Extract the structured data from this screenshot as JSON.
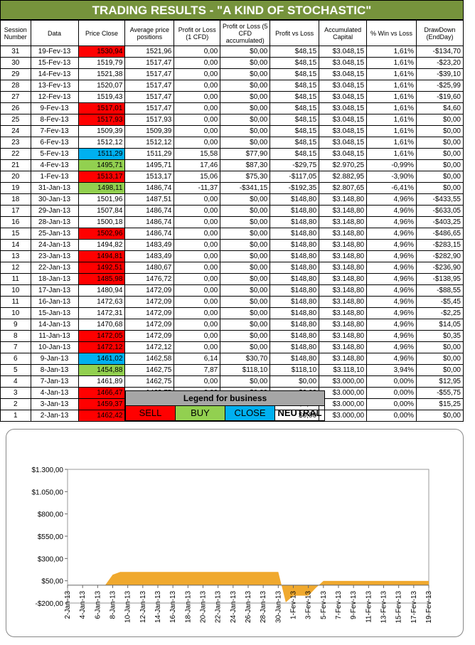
{
  "title": "TRADING RESULTS - \"A KIND OF STOCHASTIC\"",
  "headers": [
    "Session Number",
    "Data",
    "Price Close",
    "Average price positions",
    "Profit or Loss (1 CFD)",
    "Profit or Loss (5 CFD accumulated)",
    "Profit vs Loss",
    "Accumulated Capital",
    "% Win vs Loss",
    "DrawDown (EndDay)"
  ],
  "rows": [
    {
      "cells": [
        "31",
        "19-Fev-13",
        "1530,94",
        "1521,96",
        "0,00",
        "$0,00",
        "$48,15",
        "$3.048,15",
        "1,61%",
        "-$134,70"
      ],
      "signal": "sell"
    },
    {
      "cells": [
        "30",
        "15-Fev-13",
        "1519,79",
        "1517,47",
        "0,00",
        "$0,00",
        "$48,15",
        "$3.048,15",
        "1,61%",
        "-$23,20"
      ],
      "signal": ""
    },
    {
      "cells": [
        "29",
        "14-Fev-13",
        "1521,38",
        "1517,47",
        "0,00",
        "$0,00",
        "$48,15",
        "$3.048,15",
        "1,61%",
        "-$39,10"
      ],
      "signal": ""
    },
    {
      "cells": [
        "28",
        "13-Fev-13",
        "1520,07",
        "1517,47",
        "0,00",
        "$0,00",
        "$48,15",
        "$3.048,15",
        "1,61%",
        "-$25,99"
      ],
      "signal": ""
    },
    {
      "cells": [
        "27",
        "12-Fev-13",
        "1519,43",
        "1517,47",
        "0,00",
        "$0,00",
        "$48,15",
        "$3.048,15",
        "1,61%",
        "-$19,60"
      ],
      "signal": ""
    },
    {
      "cells": [
        "26",
        "9-Fev-13",
        "1517,01",
        "1517,47",
        "0,00",
        "$0,00",
        "$48,15",
        "$3.048,15",
        "1,61%",
        "$4,60"
      ],
      "signal": "sell"
    },
    {
      "cells": [
        "25",
        "8-Fev-13",
        "1517,93",
        "1517,93",
        "0,00",
        "$0,00",
        "$48,15",
        "$3.048,15",
        "1,61%",
        "$0,00"
      ],
      "signal": "sell"
    },
    {
      "cells": [
        "24",
        "7-Fev-13",
        "1509,39",
        "1509,39",
        "0,00",
        "$0,00",
        "$48,15",
        "$3.048,15",
        "1,61%",
        "$0,00"
      ],
      "signal": ""
    },
    {
      "cells": [
        "23",
        "6-Fev-13",
        "1512,12",
        "1512,12",
        "0,00",
        "$0,00",
        "$48,15",
        "$3.048,15",
        "1,61%",
        "$0,00"
      ],
      "signal": ""
    },
    {
      "cells": [
        "22",
        "5-Fev-13",
        "1511,29",
        "1511,29",
        "15,58",
        "$77,90",
        "$48,15",
        "$3.048,15",
        "1,61%",
        "$0,00"
      ],
      "signal": "close"
    },
    {
      "cells": [
        "21",
        "4-Fev-13",
        "1495,71",
        "1495,71",
        "17,46",
        "$87,30",
        "-$29,75",
        "$2.970,25",
        "-0,99%",
        "$0,00"
      ],
      "signal": "buy"
    },
    {
      "cells": [
        "20",
        "1-Fev-13",
        "1513,17",
        "1513,17",
        "15,06",
        "$75,30",
        "-$117,05",
        "$2.882,95",
        "-3,90%",
        "$0,00"
      ],
      "signal": "sell"
    },
    {
      "cells": [
        "19",
        "31-Jan-13",
        "1498,11",
        "1486,74",
        "-11,37",
        "-$341,15",
        "-$192,35",
        "$2.807,65",
        "-6,41%",
        "$0,00"
      ],
      "signal": "buy"
    },
    {
      "cells": [
        "18",
        "30-Jan-13",
        "1501,96",
        "1487,51",
        "0,00",
        "$0,00",
        "$148,80",
        "$3.148,80",
        "4,96%",
        "-$433,55"
      ],
      "signal": ""
    },
    {
      "cells": [
        "17",
        "29-Jan-13",
        "1507,84",
        "1486,74",
        "0,00",
        "$0,00",
        "$148,80",
        "$3.148,80",
        "4,96%",
        "-$633,05"
      ],
      "signal": ""
    },
    {
      "cells": [
        "16",
        "28-Jan-13",
        "1500,18",
        "1486,74",
        "0,00",
        "$0,00",
        "$148,80",
        "$3.148,80",
        "4,96%",
        "-$403,25"
      ],
      "signal": ""
    },
    {
      "cells": [
        "15",
        "25-Jan-13",
        "1502,96",
        "1486,74",
        "0,00",
        "$0,00",
        "$148,80",
        "$3.148,80",
        "4,96%",
        "-$486,65"
      ],
      "signal": "sell"
    },
    {
      "cells": [
        "14",
        "24-Jan-13",
        "1494,82",
        "1483,49",
        "0,00",
        "$0,00",
        "$148,80",
        "$3.148,80",
        "4,96%",
        "-$283,15"
      ],
      "signal": ""
    },
    {
      "cells": [
        "13",
        "23-Jan-13",
        "1494,81",
        "1483,49",
        "0,00",
        "$0,00",
        "$148,80",
        "$3.148,80",
        "4,96%",
        "-$282,90"
      ],
      "signal": "sell"
    },
    {
      "cells": [
        "12",
        "22-Jan-13",
        "1492,51",
        "1480,67",
        "0,00",
        "$0,00",
        "$148,80",
        "$3.148,80",
        "4,96%",
        "-$236,90"
      ],
      "signal": "sell"
    },
    {
      "cells": [
        "11",
        "18-Jan-13",
        "1485,98",
        "1476,72",
        "0,00",
        "$0,00",
        "$148,80",
        "$3.148,80",
        "4,96%",
        "-$138,95"
      ],
      "signal": "sell"
    },
    {
      "cells": [
        "10",
        "17-Jan-13",
        "1480,94",
        "1472,09",
        "0,00",
        "$0,00",
        "$148,80",
        "$3.148,80",
        "4,96%",
        "-$88,55"
      ],
      "signal": ""
    },
    {
      "cells": [
        "11",
        "16-Jan-13",
        "1472,63",
        "1472,09",
        "0,00",
        "$0,00",
        "$148,80",
        "$3.148,80",
        "4,96%",
        "-$5,45"
      ],
      "signal": ""
    },
    {
      "cells": [
        "10",
        "15-Jan-13",
        "1472,31",
        "1472,09",
        "0,00",
        "$0,00",
        "$148,80",
        "$3.148,80",
        "4,96%",
        "-$2,25"
      ],
      "signal": ""
    },
    {
      "cells": [
        "9",
        "14-Jan-13",
        "1470,68",
        "1472,09",
        "0,00",
        "$0,00",
        "$148,80",
        "$3.148,80",
        "4,96%",
        "$14,05"
      ],
      "signal": ""
    },
    {
      "cells": [
        "8",
        "11-Jan-13",
        "1472,05",
        "1472,09",
        "0,00",
        "$0,00",
        "$148,80",
        "$3.148,80",
        "4,96%",
        "$0,35"
      ],
      "signal": "sell"
    },
    {
      "cells": [
        "7",
        "10-Jan-13",
        "1472,12",
        "1472,12",
        "0,00",
        "$0,00",
        "$148,80",
        "$3.148,80",
        "4,96%",
        "$0,00"
      ],
      "signal": "sell"
    },
    {
      "cells": [
        "6",
        "9-Jan-13",
        "1461,02",
        "1462,58",
        "6,14",
        "$30,70",
        "$148,80",
        "$3.148,80",
        "4,96%",
        "$0,00"
      ],
      "signal": "close"
    },
    {
      "cells": [
        "5",
        "8-Jan-13",
        "1454,88",
        "1462,75",
        "7,87",
        "$118,10",
        "$118,10",
        "$3.118,10",
        "3,94%",
        "$0,00"
      ],
      "signal": "buy"
    },
    {
      "cells": [
        "4",
        "7-Jan-13",
        "1461,89",
        "1462,75",
        "0,00",
        "$0,00",
        "$0,00",
        "$3.000,00",
        "0,00%",
        "$12,95"
      ],
      "signal": ""
    },
    {
      "cells": [
        "3",
        "4-Jan-13",
        "1466,47",
        "1462,75",
        "0,00",
        "$0,00",
        "$0,00",
        "$3.000,00",
        "0,00%",
        "-$55,75"
      ],
      "signal": "sell"
    },
    {
      "cells": [
        "2",
        "3-Jan-13",
        "1459,37",
        "1460,90",
        "0,00",
        "$0,00",
        "$0,00",
        "$3.000,00",
        "0,00%",
        "$15,25"
      ],
      "signal": "sell"
    },
    {
      "cells": [
        "1",
        "2-Jan-13",
        "1462,42",
        "1462,42",
        "0,00",
        "$0,00",
        "$0,00",
        "$3.000,00",
        "0,00%",
        "$0,00"
      ],
      "signal": "sell"
    }
  ],
  "legend": {
    "title": "Legend for business",
    "sell": "SELL",
    "buy": "BUY",
    "close": "CLOSE",
    "neutral": "NEUTRAL"
  },
  "colors": {
    "header_bg": "#76933c",
    "sell": "#ff0000",
    "buy": "#92d050",
    "close": "#00b0f0",
    "legend_title_bg": "#a6a6a6",
    "area_fill": "#f0a92e"
  },
  "chart_data": {
    "type": "area",
    "title": "",
    "xlabel": "",
    "ylabel": "",
    "ylim": [
      -200,
      1300
    ],
    "y_ticks": [
      "-$200,00",
      "$50,00",
      "$300,00",
      "$550,00",
      "$800,00",
      "$1.050,00",
      "$1.300,00"
    ],
    "y_tick_values": [
      -200,
      50,
      300,
      550,
      800,
      1050,
      1300
    ],
    "x_tick_labels": [
      "2-Jan-13",
      "4-Jan-13",
      "6-Jan-13",
      "8-Jan-13",
      "10-Jan-13",
      "12-Jan-13",
      "14-Jan-13",
      "16-Jan-13",
      "18-Jan-13",
      "20-Jan-13",
      "22-Jan-13",
      "24-Jan-13",
      "26-Jan-13",
      "28-Jan-13",
      "30-Jan-13",
      "1-Fev-13",
      "3-Fev-13",
      "5-Fev-13",
      "7-Fev-13",
      "9-Fev-13",
      "11-Fev-13",
      "13-Fev-13",
      "15-Fev-13",
      "17-Fev-13",
      "19-Fev-13"
    ],
    "series": [
      {
        "x": [
          "2-Jan-13",
          "3-Jan-13",
          "4-Jan-13",
          "5-Jan-13",
          "6-Jan-13",
          "7-Jan-13",
          "8-Jan-13",
          "9-Jan-13",
          "10-Jan-13",
          "11-Jan-13",
          "12-Jan-13",
          "13-Jan-13",
          "14-Jan-13",
          "15-Jan-13",
          "16-Jan-13",
          "17-Jan-13",
          "18-Jan-13",
          "19-Jan-13",
          "20-Jan-13",
          "21-Jan-13",
          "22-Jan-13",
          "23-Jan-13",
          "24-Jan-13",
          "25-Jan-13",
          "26-Jan-13",
          "27-Jan-13",
          "28-Jan-13",
          "29-Jan-13",
          "30-Jan-13",
          "31-Jan-13",
          "1-Fev-13",
          "2-Fev-13",
          "3-Fev-13",
          "4-Fev-13",
          "5-Fev-13",
          "6-Fev-13",
          "7-Fev-13",
          "8-Fev-13",
          "9-Fev-13",
          "10-Fev-13",
          "11-Fev-13",
          "12-Fev-13",
          "13-Fev-13",
          "14-Fev-13",
          "15-Fev-13",
          "16-Fev-13",
          "17-Fev-13",
          "18-Fev-13",
          "19-Fev-13"
        ],
        "values": [
          0,
          0,
          0,
          0,
          0,
          0,
          118.1,
          148.8,
          148.8,
          148.8,
          148.8,
          148.8,
          148.8,
          148.8,
          148.8,
          148.8,
          148.8,
          148.8,
          148.8,
          148.8,
          148.8,
          148.8,
          148.8,
          148.8,
          148.8,
          148.8,
          148.8,
          148.8,
          148.8,
          -192.35,
          -117.05,
          -117.05,
          -117.05,
          -29.75,
          48.15,
          48.15,
          48.15,
          48.15,
          48.15,
          48.15,
          48.15,
          48.15,
          48.15,
          48.15,
          48.15,
          48.15,
          48.15,
          48.15,
          48.15
        ]
      }
    ]
  }
}
